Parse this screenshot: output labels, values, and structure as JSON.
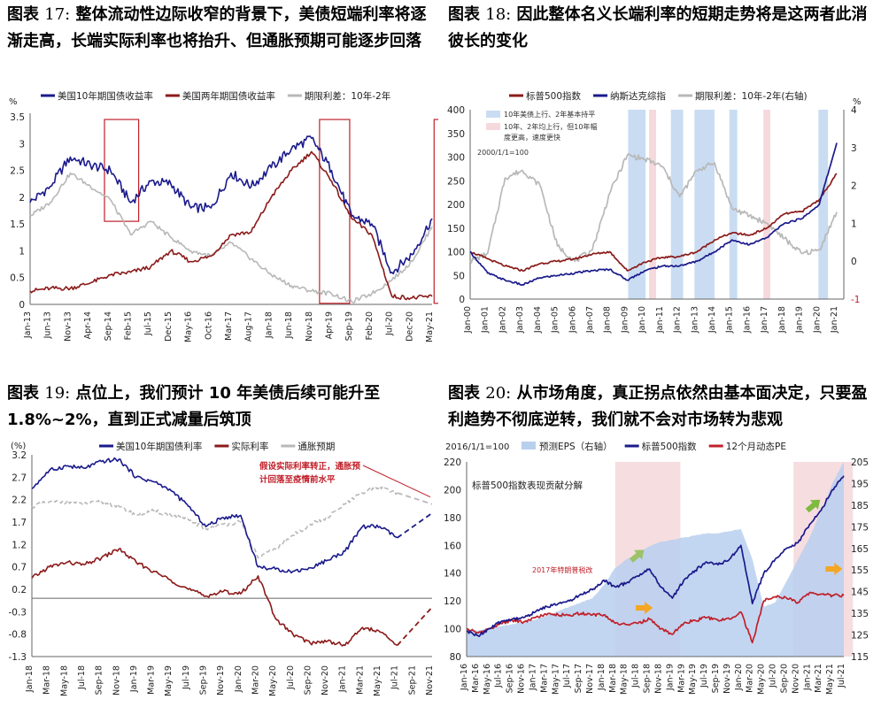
{
  "figures": [
    {
      "label_prefix": "图表",
      "number": "17:",
      "title": "整体流动性边际收窄的背景下，美债短端利率将逐渐走高，长端实际利率也将抬升、但通胀预期可能逐步回落"
    },
    {
      "label_prefix": "图表",
      "number": "18:",
      "title": "因此整体名义长端利率的短期走势将是这两者此消彼长的变化"
    },
    {
      "label_prefix": "图表",
      "number": "19:",
      "title": "点位上，我们预计 10 年美债后续可能升至 1.8%~2%，直到正式减量后筑顶"
    },
    {
      "label_prefix": "图表",
      "number": "20:",
      "title": "从市场角度，真正拐点依然由基本面决定，只要盈利趋势不彻底逆转，我们就不会对市场转为悲观"
    }
  ],
  "chart_data": [
    {
      "type": "line",
      "id": "chart17",
      "ylabel": "%",
      "ylim": [
        0,
        3.5
      ],
      "yticks": [
        "0",
        "0.5",
        "1",
        "1.5",
        "2",
        "2.5",
        "3",
        "3.5"
      ],
      "categories": [
        "Jan-13",
        "Jun-13",
        "Nov-13",
        "Apr-14",
        "Sep-14",
        "Feb-15",
        "Jul-15",
        "Dec-15",
        "May-16",
        "Oct-16",
        "Mar-17",
        "Aug-17",
        "Jan-18",
        "Jun-18",
        "Nov-18",
        "Apr-19",
        "Sep-19",
        "Feb-20",
        "Jul-20",
        "Dec-20",
        "May-21"
      ],
      "series": [
        {
          "name": "美国10年期国债收益率",
          "color": "#1a1a8c",
          "values": [
            1.9,
            2.2,
            2.75,
            2.6,
            2.5,
            1.9,
            2.3,
            2.25,
            1.8,
            1.8,
            2.45,
            2.2,
            2.55,
            2.9,
            3.1,
            2.5,
            1.65,
            1.5,
            0.6,
            0.93,
            1.6
          ]
        },
        {
          "name": "美国两年期国债收益率",
          "color": "#8b1a1a",
          "values": [
            0.25,
            0.3,
            0.3,
            0.4,
            0.55,
            0.6,
            0.7,
            1.0,
            0.8,
            0.9,
            1.3,
            1.35,
            2.0,
            2.5,
            2.85,
            2.3,
            1.6,
            1.3,
            0.15,
            0.12,
            0.15
          ]
        },
        {
          "name": "期限利差：10年-2年",
          "color": "#b8b8b8",
          "values": [
            1.65,
            1.9,
            2.45,
            2.2,
            1.95,
            1.3,
            1.55,
            1.25,
            1.0,
            0.9,
            1.15,
            0.85,
            0.55,
            0.35,
            0.25,
            0.2,
            0.05,
            0.2,
            0.45,
            0.8,
            1.45
          ]
        }
      ],
      "highlight_labels": [
        "Sep-14",
        "Nov-18",
        "May-21"
      ]
    },
    {
      "type": "line",
      "id": "chart18",
      "ylim": [
        0,
        400
      ],
      "y2lim": [
        -1,
        4
      ],
      "yticks": [
        "0",
        "50",
        "100",
        "150",
        "200",
        "250",
        "300",
        "350",
        "400"
      ],
      "y2ticks": [
        "-1",
        "0",
        "1",
        "2",
        "3",
        "4"
      ],
      "y2label": "%",
      "categories": [
        "Jan-00",
        "Jan-01",
        "Jan-02",
        "Jan-03",
        "Jan-04",
        "Jan-05",
        "Jan-06",
        "Jan-07",
        "Jan-08",
        "Jan-09",
        "Jan-10",
        "Jan-11",
        "Jan-12",
        "Jan-13",
        "Jan-14",
        "Jan-15",
        "Jan-16",
        "Jan-17",
        "Jan-18",
        "Jan-19",
        "Jan-20",
        "Jan-21"
      ],
      "series": [
        {
          "name": "标普500指数",
          "color": "#8b1a1a",
          "axis": "left",
          "values": [
            100,
            85,
            70,
            60,
            75,
            80,
            85,
            95,
            100,
            60,
            78,
            88,
            90,
            100,
            125,
            140,
            135,
            150,
            180,
            185,
            210,
            265
          ]
        },
        {
          "name": "纳斯达克综指",
          "color": "#1a1a8c",
          "axis": "left",
          "values": [
            100,
            55,
            40,
            30,
            45,
            50,
            55,
            60,
            63,
            40,
            60,
            70,
            70,
            80,
            100,
            125,
            115,
            130,
            160,
            170,
            200,
            330
          ]
        },
        {
          "name": "期限利差：10年-2年(右轴)",
          "color": "#b8b8b8",
          "axis": "right",
          "values": [
            0,
            0.2,
            2.2,
            2.4,
            2.0,
            0.4,
            0,
            0.3,
            1.8,
            2.8,
            2.7,
            2.5,
            1.7,
            2.4,
            2.6,
            1.4,
            1.2,
            1.0,
            0.6,
            0.2,
            0.3,
            1.3
          ]
        }
      ],
      "legend_notes": [
        "10年美债上行、2年基本持平",
        "10年、2年均上行，但10年幅度更高，速度更快"
      ],
      "base_note": "2000/1/1=100"
    },
    {
      "type": "line",
      "id": "chart19",
      "ylabel": "(%)",
      "ylim": [
        -1.3,
        3.2
      ],
      "yticks": [
        "3.2",
        "2.7",
        "2.2",
        "1.7",
        "1.2",
        "0.7",
        "0.2",
        "-0.3",
        "-0.8",
        "-1.3"
      ],
      "categories": [
        "Jan-18",
        "Mar-18",
        "May-18",
        "Jul-18",
        "Sep-18",
        "Nov-18",
        "Jan-19",
        "Mar-19",
        "May-19",
        "Jul-19",
        "Sep-19",
        "Nov-19",
        "Jan-20",
        "Mar-20",
        "May-20",
        "Jul-20",
        "Sep-20",
        "Nov-20",
        "Jan-21",
        "Mar-21",
        "May-21",
        "Jul-21",
        "Sep-21",
        "Nov-21"
      ],
      "series": [
        {
          "name": "美国10年期国债利率",
          "color": "#1a1a8c",
          "values": [
            2.45,
            2.85,
            2.95,
            2.9,
            3.05,
            3.1,
            2.7,
            2.6,
            2.4,
            2.05,
            1.6,
            1.8,
            1.85,
            0.7,
            0.65,
            0.6,
            0.68,
            0.85,
            1.05,
            1.6,
            1.6,
            1.35,
            null,
            null
          ]
        },
        {
          "name": "实际利率",
          "color": "#8b1a1a",
          "values": [
            0.45,
            0.7,
            0.8,
            0.75,
            0.9,
            1.1,
            0.8,
            0.6,
            0.4,
            0.2,
            0.05,
            0.15,
            0.1,
            0.5,
            -0.45,
            -0.8,
            -1.0,
            -0.95,
            -1.05,
            -0.65,
            -0.75,
            -1.05,
            null,
            null
          ]
        },
        {
          "name": "通胀预期",
          "color": "#b8b8b8",
          "values": [
            2.05,
            2.15,
            2.15,
            2.1,
            2.15,
            2.05,
            1.85,
            1.95,
            1.85,
            1.75,
            1.55,
            1.65,
            1.7,
            0.9,
            1.1,
            1.4,
            1.65,
            1.8,
            2.1,
            2.35,
            2.5,
            2.35,
            null,
            null
          ]
        }
      ],
      "forecast": {
        "ten_year_target": 1.9,
        "real_rate_target": -0.2,
        "inflation_target": 2.1
      },
      "annotation": "假设实际利率转正，通胀预计回落至疫情前水平"
    },
    {
      "type": "line",
      "id": "chart20",
      "ylim": [
        80,
        220
      ],
      "y2lim": [
        115,
        205
      ],
      "yticks": [
        "80",
        "100",
        "120",
        "140",
        "160",
        "180",
        "200",
        "220"
      ],
      "y2ticks": [
        "115",
        "125",
        "135",
        "145",
        "155",
        "165",
        "175",
        "185",
        "195",
        "205"
      ],
      "categories": [
        "Jan-16",
        "Mar-16",
        "May-16",
        "Jul-16",
        "Sep-16",
        "Nov-16",
        "Jan-17",
        "Mar-17",
        "May-17",
        "Jul-17",
        "Sep-17",
        "Nov-17",
        "Jan-18",
        "Mar-18",
        "May-18",
        "Jul-18",
        "Sep-18",
        "Nov-18",
        "Jan-19",
        "Mar-19",
        "May-19",
        "Jul-19",
        "Sep-19",
        "Nov-19",
        "Jan-20",
        "Mar-20",
        "May-20",
        "Jul-20",
        "Sep-20",
        "Nov-20",
        "Jan-21",
        "Mar-21",
        "May-21",
        "Jul-21"
      ],
      "series": [
        {
          "name": "预测EPS（右轴）",
          "color": "#b9cfee",
          "axis": "right",
          "values": [
            128,
            127,
            128,
            129,
            130,
            131,
            132,
            134,
            136,
            138,
            140,
            142,
            148,
            156,
            160,
            163,
            166,
            168,
            169,
            170,
            171,
            172,
            172,
            173,
            174,
            160,
            138,
            140,
            150,
            160,
            170,
            182,
            195,
            205
          ]
        },
        {
          "name": "标普500指数",
          "color": "#1a1a8c",
          "axis": "left",
          "values": [
            98,
            95,
            100,
            105,
            107,
            108,
            112,
            116,
            118,
            120,
            125,
            128,
            135,
            130,
            133,
            138,
            143,
            130,
            122,
            135,
            142,
            148,
            146,
            150,
            160,
            118,
            140,
            150,
            158,
            162,
            175,
            185,
            200,
            210
          ]
        },
        {
          "name": "12个月动态PE",
          "color": "#c0202a",
          "axis": "left",
          "values": [
            100,
            97,
            100,
            104,
            106,
            105,
            108,
            110,
            110,
            110,
            111,
            110,
            110,
            104,
            103,
            104,
            107,
            100,
            96,
            104,
            106,
            108,
            106,
            107,
            112,
            90,
            120,
            123,
            122,
            119,
            126,
            125,
            124,
            124
          ]
        }
      ],
      "base_note": "2016/1/1=100",
      "subtitle": "标普500指数表现贡献分解",
      "annotation": "2017年特朗普税改"
    }
  ]
}
